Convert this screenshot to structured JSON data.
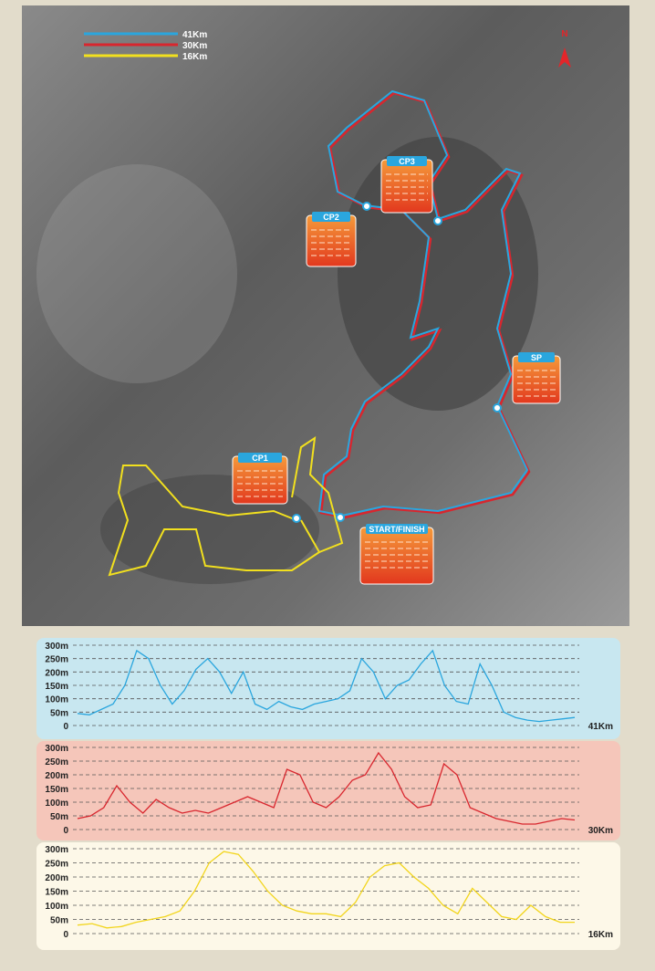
{
  "map": {
    "north": "N",
    "legend": [
      {
        "label": "41Km",
        "color": "#2aa6de"
      },
      {
        "label": "30Km",
        "color": "#d8262e"
      },
      {
        "label": "16Km",
        "color": "#f2e01e"
      }
    ],
    "checkpoints": [
      "CP1",
      "CP2",
      "CP3",
      "SP",
      "START/FINISH"
    ]
  },
  "chart_data": [
    {
      "type": "line",
      "background": "#c8e7f0",
      "ylim": [
        0,
        300
      ],
      "yticks": [
        0,
        {
          "value": 50,
          "label": "50m"
        },
        {
          "value": 100,
          "label": "100m"
        },
        {
          "value": 150,
          "label": "150m"
        },
        {
          "value": 200,
          "label": "200m"
        },
        {
          "value": 250,
          "label": "250m"
        },
        {
          "value": 300,
          "label": "300m"
        }
      ],
      "grid": true,
      "series": [
        {
          "name": "41Km",
          "color": "#2aa6de",
          "values": [
            45,
            40,
            60,
            80,
            150,
            280,
            250,
            150,
            80,
            130,
            210,
            250,
            200,
            120,
            200,
            80,
            60,
            90,
            70,
            60,
            80,
            90,
            100,
            130,
            250,
            200,
            100,
            150,
            170,
            230,
            280,
            150,
            90,
            80,
            230,
            150,
            50,
            30,
            20,
            15,
            20,
            25,
            30
          ]
        }
      ]
    },
    {
      "type": "line",
      "background": "#f5c6ba",
      "ylim": [
        0,
        300
      ],
      "yticks": [
        0,
        {
          "value": 50,
          "label": "50m"
        },
        {
          "value": 100,
          "label": "100m"
        },
        {
          "value": 150,
          "label": "150m"
        },
        {
          "value": 200,
          "label": "200m"
        },
        {
          "value": 250,
          "label": "250m"
        },
        {
          "value": 300,
          "label": "300m"
        }
      ],
      "grid": true,
      "series": [
        {
          "name": "30Km",
          "color": "#d8262e",
          "values": [
            40,
            50,
            80,
            160,
            100,
            60,
            110,
            80,
            60,
            70,
            60,
            80,
            100,
            120,
            100,
            80,
            220,
            200,
            100,
            80,
            120,
            180,
            200,
            280,
            220,
            120,
            80,
            90,
            240,
            200,
            80,
            60,
            40,
            30,
            20,
            20,
            30,
            40,
            35
          ]
        }
      ]
    },
    {
      "type": "line",
      "background": "#fdf8e8",
      "ylim": [
        0,
        300
      ],
      "yticks": [
        0,
        {
          "value": 50,
          "label": "50m"
        },
        {
          "value": 100,
          "label": "100m"
        },
        {
          "value": 150,
          "label": "150m"
        },
        {
          "value": 200,
          "label": "200m"
        },
        {
          "value": 250,
          "label": "250m"
        },
        {
          "value": 300,
          "label": "300m"
        }
      ],
      "grid": true,
      "series": [
        {
          "name": "16Km",
          "color": "#f2d51c",
          "values": [
            30,
            35,
            20,
            25,
            40,
            50,
            60,
            80,
            150,
            250,
            290,
            280,
            220,
            150,
            100,
            80,
            70,
            70,
            60,
            110,
            200,
            240,
            250,
            200,
            160,
            100,
            70,
            160,
            110,
            60,
            50,
            100,
            60,
            40,
            40
          ]
        }
      ]
    }
  ]
}
